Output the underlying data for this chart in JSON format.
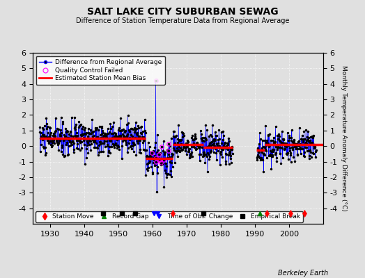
{
  "title": "SALT LAKE CITY SUBURBAN SEWAG",
  "subtitle": "Difference of Station Temperature Data from Regional Average",
  "xlabel_years": [
    1930,
    1940,
    1950,
    1960,
    1970,
    1980,
    1990,
    2000
  ],
  "ylim": [
    -5,
    6
  ],
  "yticks": [
    -4,
    -3,
    -2,
    -1,
    0,
    1,
    2,
    3,
    4,
    5,
    6
  ],
  "xlim": [
    1925,
    2010
  ],
  "background_color": "#e0e0e0",
  "plot_bg_color": "#e0e0e0",
  "seed": 42,
  "station_moves": [
    1966.0,
    1993.5,
    2000.5,
    2004.5
  ],
  "record_gaps": [
    1991.5
  ],
  "time_obs_changes": [
    1960.5,
    1961.5
  ],
  "empirical_breaks": [
    1945.5,
    1951.0,
    1955.0,
    1975.0
  ],
  "segment_biases": [
    {
      "start": 1927,
      "end": 1947,
      "bias": 0.5
    },
    {
      "start": 1947,
      "end": 1958,
      "bias": 0.5
    },
    {
      "start": 1958,
      "end": 1962,
      "bias": -0.8
    },
    {
      "start": 1962,
      "end": 1966,
      "bias": -0.8
    },
    {
      "start": 1966,
      "end": 1975,
      "bias": 0.1
    },
    {
      "start": 1975,
      "end": 1984,
      "bias": -0.1
    },
    {
      "start": 1984,
      "end": 1993,
      "bias": -0.25
    },
    {
      "start": 1993,
      "end": 2010,
      "bias": 0.1
    }
  ],
  "gap_start": 1983.5,
  "gap_end": 1990.5
}
